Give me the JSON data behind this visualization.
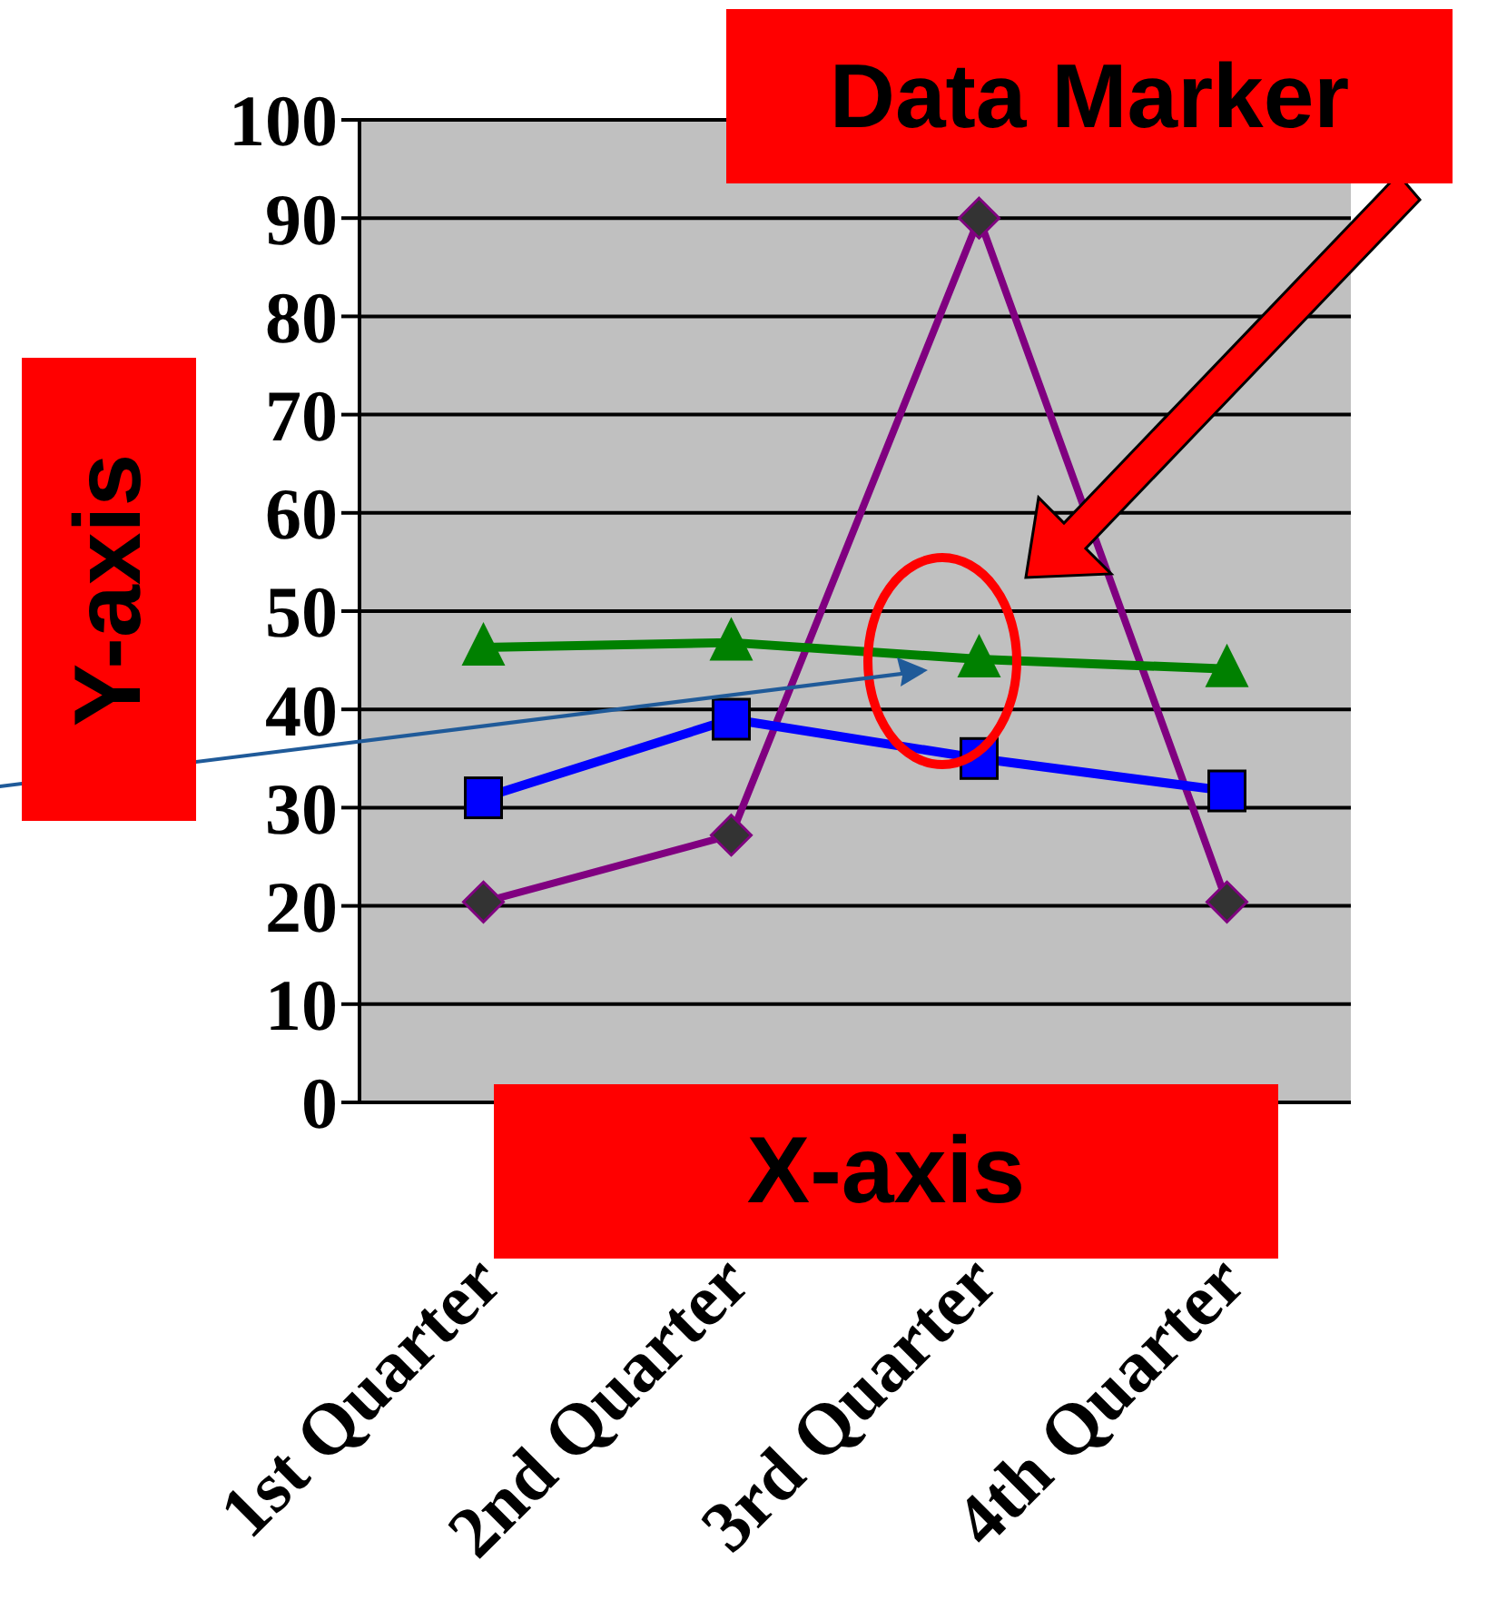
{
  "chart_data": {
    "type": "line",
    "xlabel": "X-axis",
    "ylabel": "Y-axis",
    "annotations": [
      "Data Marker"
    ],
    "categories": [
      "1st Quarter",
      "2nd Quarter",
      "3rd Quarter",
      "4th Quarter"
    ],
    "series": [
      {
        "color": "#800080",
        "marker": "diamond",
        "values": [
          20.4,
          27.2,
          90,
          20.4
        ]
      },
      {
        "color": "#0000ff",
        "marker": "square",
        "values": [
          31,
          39,
          35,
          31.7
        ]
      },
      {
        "color": "#008000",
        "marker": "triangle",
        "values": [
          46.3,
          46.8,
          45.1,
          44.1
        ]
      }
    ],
    "ylim": [
      0,
      100
    ],
    "yticks": [
      0,
      10,
      20,
      30,
      40,
      50,
      60,
      70,
      80,
      90,
      100
    ],
    "grid": "y"
  }
}
